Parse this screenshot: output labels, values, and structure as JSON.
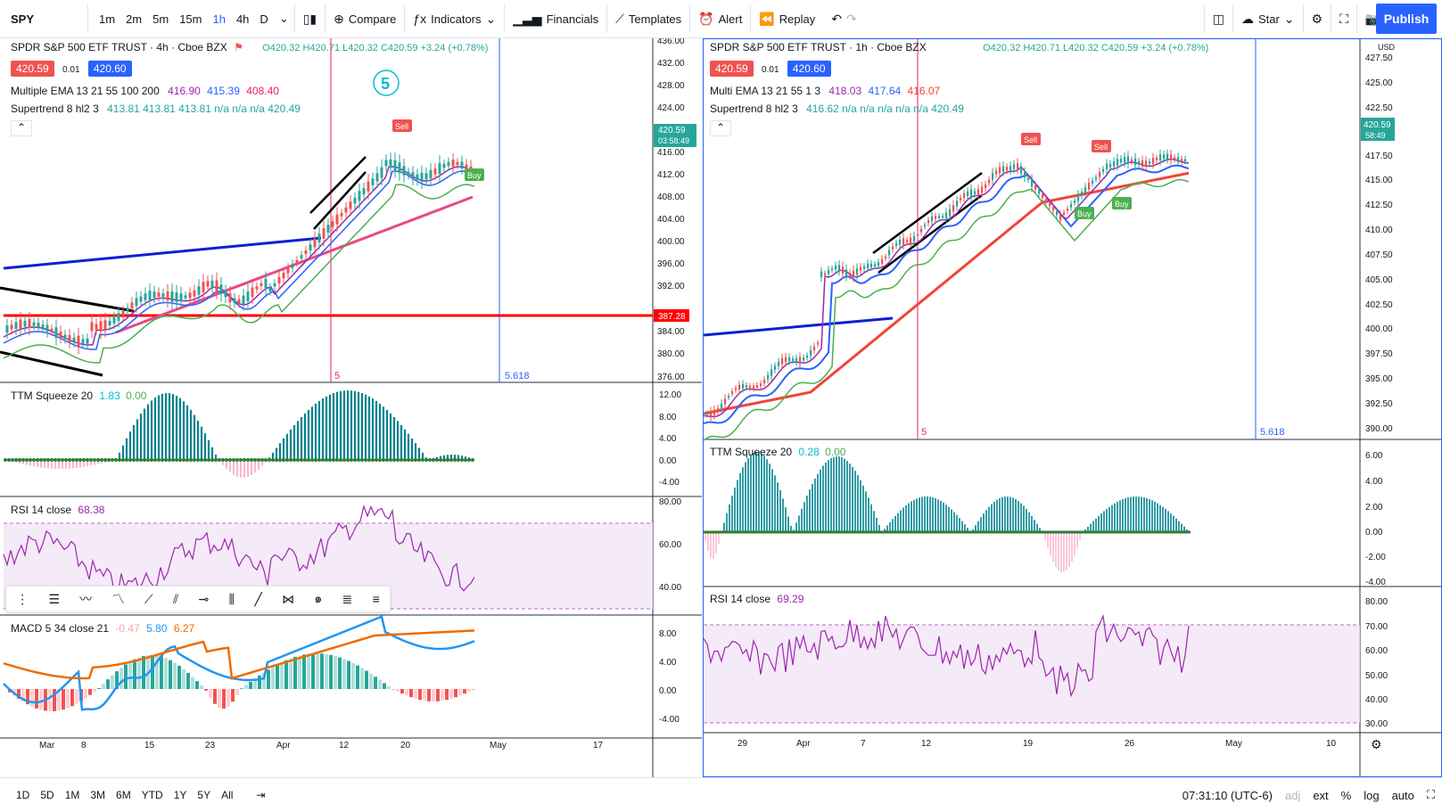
{
  "toolbar": {
    "symbol": "SPY",
    "intervals": [
      "1m",
      "2m",
      "5m",
      "15m",
      "1h",
      "4h",
      "D"
    ],
    "active_interval": "1h",
    "compare": "Compare",
    "indicators": "Indicators",
    "financials": "Financials",
    "templates": "Templates",
    "alert": "Alert",
    "replay": "Replay",
    "layout_name": "Star",
    "publish": "Publish"
  },
  "left_chart": {
    "title": "SPDR S&P 500 ETF TRUST · 4h · Cboe BZX",
    "ohlc": "O420.32 H420.71 L420.32 C420.59 +3.24 (+0.78%)",
    "bid": "420.59",
    "spread": "0.01",
    "ask": "420.60",
    "ema_label": "Multiple EMA 13 21 55 100 200",
    "ema_values": [
      "416.90",
      "415.39",
      "408.40"
    ],
    "supertrend_label": "Supertrend 8 hl2 3",
    "supertrend_values": "413.81 413.81 413.81 n/a n/a n/a 420.49",
    "price_ticks": [
      "436.00",
      "432.00",
      "428.00",
      "424.00",
      "420.59",
      "416.00",
      "412.00",
      "408.00",
      "404.00",
      "400.00",
      "396.00",
      "392.00",
      "387.28",
      "384.00",
      "380.00",
      "376.00"
    ],
    "last_price_time": "03:58:49",
    "hline_price": "387.28",
    "fib_label": "5.618",
    "cycle_label": "5",
    "wave_big": "5",
    "sell_tag": "Sell",
    "buy_tag": "Buy",
    "ttm_label": "TTM Squeeze 20",
    "ttm_values": [
      "1.83",
      "0.00"
    ],
    "ttm_ticks": [
      "12.00",
      "8.00",
      "4.00",
      "0.00",
      "-4.00"
    ],
    "rsi_label": "RSI 14 close",
    "rsi_value": "68.38",
    "rsi_ticks": [
      "80.00",
      "60.00",
      "40.00"
    ],
    "macd_label": "MACD 5 34 close 21",
    "macd_values": [
      "-0.47",
      "5.80",
      "6.27"
    ],
    "macd_ticks": [
      "8.00",
      "4.00",
      "0.00",
      "-4.00"
    ],
    "time_ticks": [
      "Mar",
      "8",
      "15",
      "23",
      "Apr",
      "12",
      "20",
      "May",
      "17"
    ]
  },
  "right_chart": {
    "title": "SPDR S&P 500 ETF TRUST · 1h · Cboe BZX",
    "ohlc": "O420.32 H420.71 L420.32 C420.59 +3.24 (+0.78%)",
    "bid": "420.59",
    "spread": "0.01",
    "ask": "420.60",
    "ema_label": "Multi EMA 13 21 55 1 3",
    "ema_values": [
      "418.03",
      "417.64",
      "416.07"
    ],
    "supertrend_label": "Supertrend 8 hl2 3",
    "supertrend_values": "416.62 n/a n/a n/a n/a n/a 420.49",
    "currency": "USD",
    "price_ticks": [
      "427.50",
      "425.00",
      "422.50",
      "420.59",
      "417.50",
      "415.00",
      "412.50",
      "410.00",
      "407.50",
      "405.00",
      "402.50",
      "400.00",
      "397.50",
      "395.00",
      "392.50",
      "390.00"
    ],
    "last_price_time": "58:49",
    "fib_label": "5.618",
    "cycle_label": "5",
    "sell_tag": "Sell",
    "buy_tag": "Buy",
    "ttm_label": "TTM Squeeze 20",
    "ttm_values": [
      "0.28",
      "0.00"
    ],
    "ttm_ticks": [
      "6.00",
      "4.00",
      "2.00",
      "0.00",
      "-2.00",
      "-4.00"
    ],
    "rsi_label": "RSI 14 close",
    "rsi_value": "69.29",
    "rsi_ticks": [
      "80.00",
      "70.00",
      "60.00",
      "50.00",
      "40.00",
      "30.00"
    ],
    "time_ticks": [
      "29",
      "Apr",
      "7",
      "12",
      "19",
      "26",
      "May",
      "10"
    ]
  },
  "bottom": {
    "ranges": [
      "1D",
      "5D",
      "1M",
      "3M",
      "6M",
      "YTD",
      "1Y",
      "5Y",
      "All"
    ],
    "clock": "07:31:10 (UTC-6)",
    "adj": "adj",
    "ext": "ext",
    "pct": "%",
    "log": "log",
    "auto": "auto"
  }
}
